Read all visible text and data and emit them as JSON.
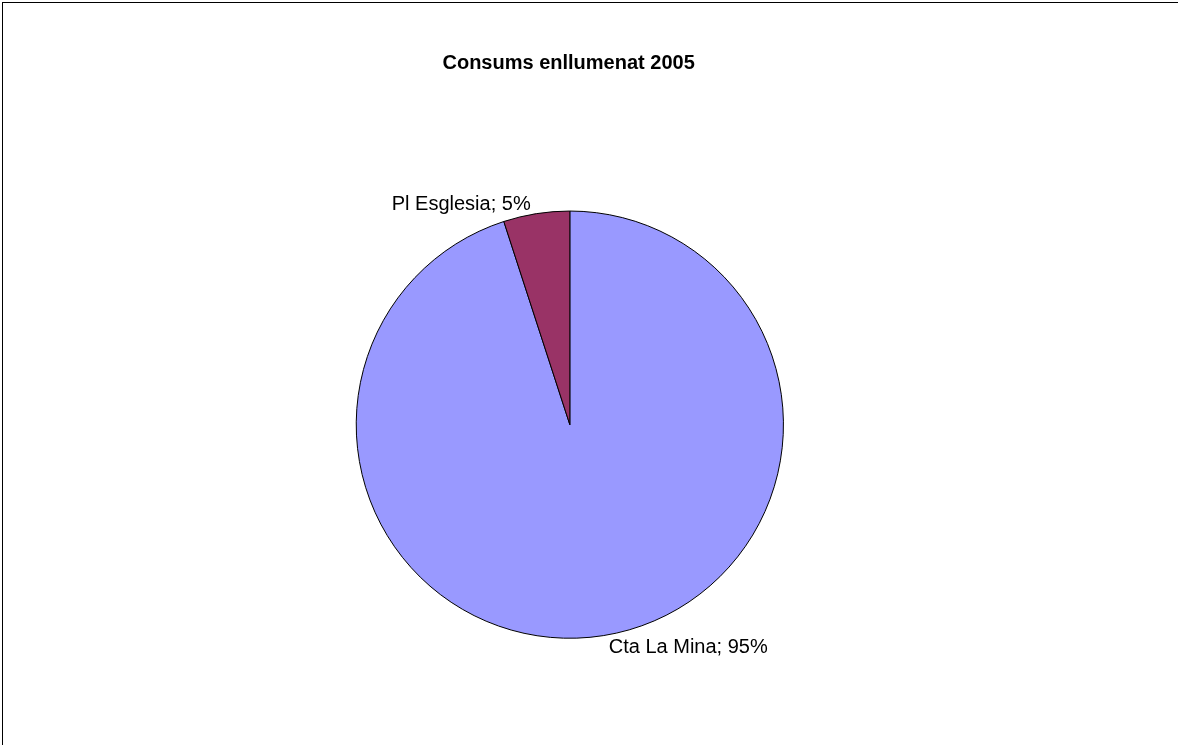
{
  "chart_data": {
    "type": "pie",
    "title": "Consums enllumenat 2005",
    "categories": [
      "Cta La Mina",
      "Pl Esglesia"
    ],
    "values": [
      95,
      5
    ],
    "value_labels": [
      "95%",
      "5%"
    ],
    "colors": [
      "#9999ff",
      "#993366"
    ],
    "legend": false
  }
}
